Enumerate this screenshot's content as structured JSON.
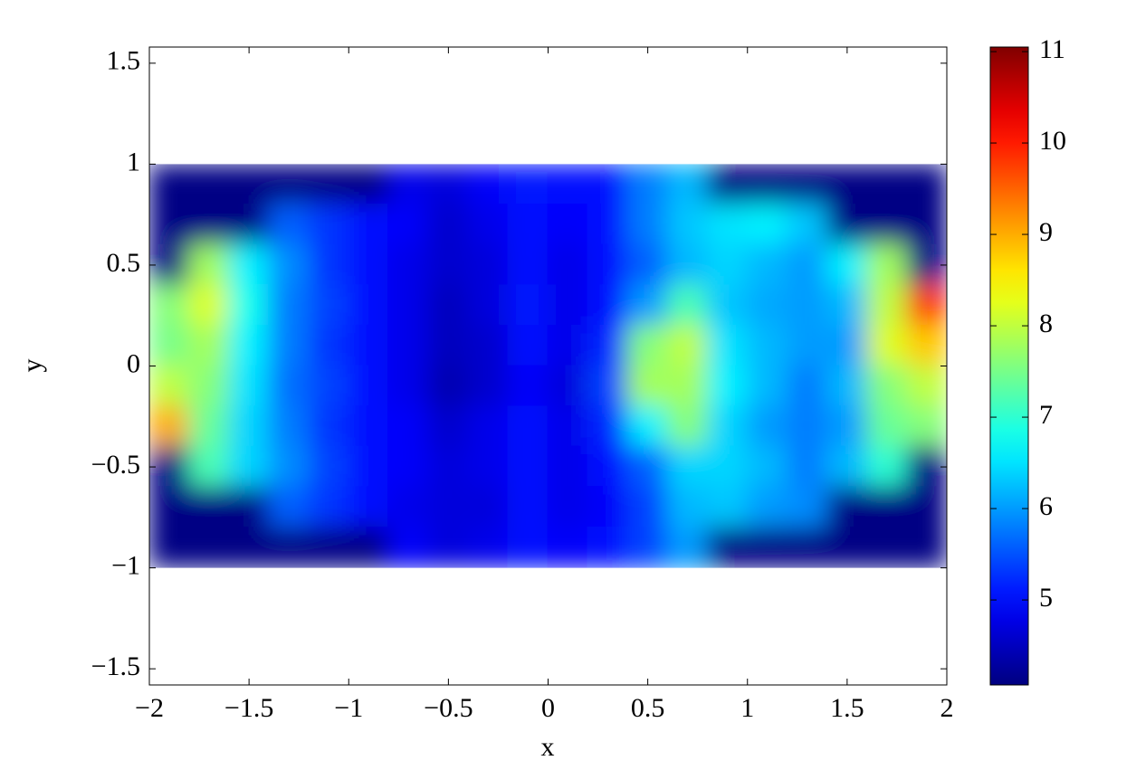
{
  "chart_data": {
    "type": "heatmap",
    "xlabel": "x",
    "ylabel": "y",
    "colormap": "jet",
    "x": [
      -1.9,
      -1.7,
      -1.5,
      -1.3,
      -1.1,
      -0.9,
      -0.7,
      -0.5,
      -0.3,
      -0.1,
      0.1,
      0.3,
      0.5,
      0.7,
      0.9,
      1.1,
      1.3,
      1.5,
      1.7,
      1.9
    ],
    "y": [
      0.9,
      0.7,
      0.5,
      0.3,
      0.1,
      -0.1,
      -0.3,
      -0.5,
      -0.7,
      -0.9
    ],
    "z": [
      [
        4.1,
        4.1,
        4.1,
        4.1,
        4.1,
        4.1,
        4.8,
        4.7,
        4.9,
        5.1,
        5.0,
        5.0,
        5.8,
        6.2,
        4.1,
        4.1,
        4.1,
        4.1,
        4.1,
        4.1
      ],
      [
        4.1,
        4.1,
        4.1,
        5.6,
        5.3,
        5.0,
        4.9,
        4.6,
        4.8,
        5.0,
        4.9,
        5.0,
        5.8,
        6.3,
        6.5,
        6.6,
        6.3,
        4.1,
        4.1,
        4.1
      ],
      [
        4.1,
        7.8,
        6.6,
        5.9,
        5.3,
        5.0,
        4.8,
        4.6,
        4.7,
        5.0,
        4.8,
        5.0,
        5.6,
        6.2,
        6.4,
        6.2,
        6.0,
        6.6,
        7.8,
        4.1
      ],
      [
        7.6,
        8.2,
        6.8,
        5.8,
        5.4,
        5.0,
        4.8,
        4.5,
        4.7,
        5.1,
        4.8,
        5.0,
        6.0,
        7.2,
        6.3,
        6.1,
        6.0,
        6.2,
        8.0,
        9.8
      ],
      [
        7.5,
        7.8,
        6.6,
        5.8,
        5.3,
        5.0,
        4.8,
        4.5,
        4.6,
        5.0,
        4.8,
        5.2,
        7.6,
        8.0,
        6.5,
        6.2,
        6.0,
        6.0,
        8.2,
        8.8
      ],
      [
        8.0,
        7.6,
        6.5,
        5.7,
        5.4,
        5.0,
        4.8,
        4.4,
        4.6,
        4.9,
        4.7,
        5.4,
        7.8,
        7.8,
        6.6,
        6.2,
        5.8,
        6.2,
        7.6,
        8.0
      ],
      [
        9.0,
        7.4,
        6.4,
        5.8,
        5.3,
        5.0,
        4.9,
        4.6,
        4.8,
        5.0,
        4.8,
        5.2,
        6.6,
        7.6,
        6.4,
        6.0,
        5.8,
        6.0,
        7.4,
        7.6
      ],
      [
        4.1,
        7.2,
        6.4,
        5.9,
        5.4,
        5.0,
        4.9,
        4.7,
        4.8,
        5.0,
        4.8,
        5.0,
        5.6,
        6.4,
        6.4,
        6.2,
        5.8,
        6.2,
        7.0,
        4.1
      ],
      [
        4.1,
        4.1,
        4.1,
        5.6,
        5.3,
        5.0,
        4.8,
        4.7,
        4.7,
        5.0,
        4.8,
        4.9,
        5.4,
        6.2,
        6.3,
        6.0,
        5.9,
        4.1,
        4.1,
        4.1
      ],
      [
        4.1,
        4.1,
        4.1,
        4.1,
        4.1,
        4.1,
        4.9,
        4.7,
        4.8,
        5.0,
        4.9,
        5.0,
        5.4,
        6.0,
        4.1,
        4.1,
        4.1,
        4.1,
        4.1,
        4.1
      ]
    ],
    "xlim": [
      -2,
      2
    ],
    "ylim": [
      -1.58,
      1.58
    ],
    "xticks": [
      {
        "value": -2,
        "label": "−2"
      },
      {
        "value": -1.5,
        "label": "−1.5"
      },
      {
        "value": -1,
        "label": "−1"
      },
      {
        "value": -0.5,
        "label": "−0.5"
      },
      0,
      0.5,
      1,
      1.5,
      2
    ],
    "yticks": [
      {
        "value": -1.5,
        "label": "−1.5"
      },
      {
        "value": -1,
        "label": "−1"
      },
      {
        "value": -0.5,
        "label": "−0.5"
      },
      0,
      0.5,
      1,
      1.5
    ],
    "colorbar": {
      "clim": [
        4.07,
        11.05
      ],
      "ticks": [
        5,
        6,
        7,
        8,
        9,
        10,
        11
      ]
    }
  }
}
